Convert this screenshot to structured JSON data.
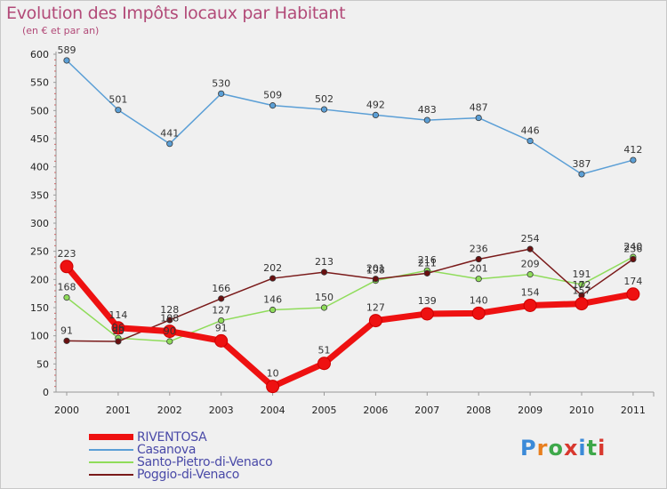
{
  "header": {
    "title": "Evolution des Impôts locaux par Habitant",
    "subtitle": "(en € et par an)"
  },
  "logo": {
    "text": "Proxiti"
  },
  "chart_data": {
    "type": "line",
    "x": [
      "2000",
      "2001",
      "2002",
      "2003",
      "2004",
      "2005",
      "2006",
      "2007",
      "2008",
      "2009",
      "2010",
      "2011"
    ],
    "ylim": [
      0,
      600
    ],
    "yticks": [
      0,
      50,
      100,
      150,
      200,
      250,
      300,
      350,
      400,
      450,
      500,
      550,
      600
    ],
    "grid": false,
    "legend_position": "bottom-left",
    "series": [
      {
        "name": "RIVENTOSA",
        "color": "#ee1111",
        "values": [
          223,
          114,
          108,
          91,
          10,
          51,
          127,
          139,
          140,
          154,
          157,
          174
        ]
      },
      {
        "name": "Casanova",
        "color": "#5b9fd6",
        "values": [
          589,
          501,
          441,
          530,
          509,
          502,
          492,
          483,
          487,
          446,
          387,
          412
        ]
      },
      {
        "name": "Santo-Pietro-di-Venaco",
        "color": "#8fdc5a",
        "values": [
          168,
          96,
          90,
          127,
          146,
          150,
          198,
          216,
          201,
          209,
          191,
          240
        ]
      },
      {
        "name": "Poggio-di-Venaco",
        "color": "#7a1a1a",
        "values": [
          91,
          90,
          128,
          166,
          202,
          213,
          201,
          211,
          236,
          254,
          172,
          236
        ]
      }
    ]
  }
}
